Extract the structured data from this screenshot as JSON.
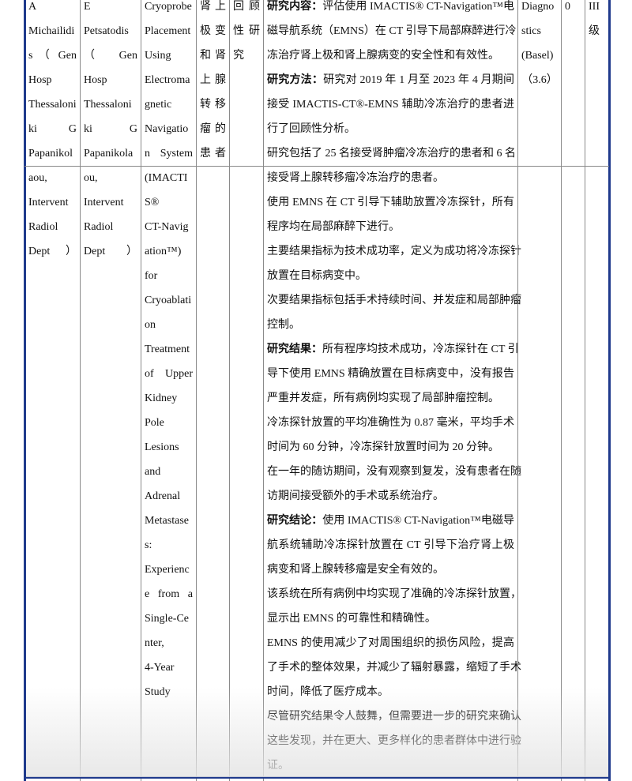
{
  "rows": [
    {
      "cells": [
        {
          "lines": [
            "A",
            "Michailidi",
            "s （ Gen",
            "Hosp",
            "Thessaloni",
            "ki G",
            "Papanikol"
          ]
        },
        {
          "lines": [
            "E",
            "Petsatodis",
            "（ Gen",
            "Hosp",
            "Thessaloni",
            "ki G",
            "Papanikola"
          ]
        },
        {
          "lines": [
            "Cryoprobe",
            "Placement",
            "Using",
            "Electroma",
            "gnetic",
            "Navigatio",
            "n System"
          ]
        },
        {
          "lines": [
            "肾上",
            "极变",
            "和肾",
            "上腺",
            "转移",
            "瘤的",
            "患者"
          ]
        },
        {
          "lines": [
            "回顾",
            "性研",
            "究"
          ]
        },
        {
          "paragraphs": [
            [
              {
                "b": "研究内容：",
                "t": "评估使用 IMACTIS® CT-Navigation™电"
              },
              {
                "t": "磁导航系统（EMNS）在 CT 引导下局部麻醉进行冷"
              },
              {
                "t": "冻治疗肾上极和肾上腺病变的安全性和有效性。"
              }
            ],
            [
              {
                "b": "研究方法：",
                "t": "研究对 2019 年 1 月至 2023 年 4 月期间"
              },
              {
                "t": "接受 IMACTIS-CT®-EMNS 辅助冷冻治疗的患者进"
              },
              {
                "t": "行了回顾性分析。"
              }
            ],
            [
              {
                "t": "研究包括了 25 名接受肾肿瘤冷冻治疗的患者和 6 名"
              }
            ]
          ]
        },
        {
          "lines": [
            "Diagno",
            "stics",
            "(Basel)",
            "（3.6）"
          ]
        },
        {
          "lines": [
            "0"
          ]
        },
        {
          "lines": [
            "III",
            "级"
          ]
        }
      ]
    },
    {
      "cells": [
        {
          "lines": [
            "aou,",
            "Intervent",
            "Radiol",
            "Dept）"
          ]
        },
        {
          "lines": [
            "ou,",
            "Intervent",
            "Radiol",
            "Dept）"
          ]
        },
        {
          "lines": [
            "(IMACTI",
            "S®",
            "CT-Navig",
            "ation™)",
            "for",
            "Cryoablati",
            "on",
            "Treatment",
            "of Upper",
            "Kidney",
            "Pole",
            "Lesions",
            "and",
            "Adrenal",
            "Metastase",
            "s:",
            "Experienc",
            "e from a",
            "Single-Ce",
            "nter,",
            "4-Year",
            "Study"
          ]
        },
        {
          "lines": []
        },
        {
          "lines": []
        },
        {
          "paragraphs": [
            [
              {
                "t": "接受肾上腺转移瘤冷冻治疗的患者。"
              }
            ],
            [
              {
                "t": "使用 EMNS 在 CT 引导下辅助放置冷冻探针，所有"
              },
              {
                "t": "程序均在局部麻醉下进行。"
              }
            ],
            [
              {
                "t": "主要结果指标为技术成功率，定义为成功将冷冻探针"
              },
              {
                "t": "放置在目标病变中。"
              }
            ],
            [
              {
                "t": "次要结果指标包括手术持续时间、并发症和局部肿瘤"
              },
              {
                "t": "控制。"
              }
            ],
            [
              {
                "b": "研究结果：",
                "t": "所有程序均技术成功，冷冻探针在 CT 引"
              },
              {
                "t": "导下使用 EMNS 精确放置在目标病变中，没有报告"
              },
              {
                "t": "严重并发症，所有病例均实现了局部肿瘤控制。"
              }
            ],
            [
              {
                "t": "冷冻探针放置的平均准确性为 0.87 毫米，平均手术"
              },
              {
                "t": "时间为 60 分钟，冷冻探针放置时间为 20 分钟。"
              }
            ],
            [
              {
                "t": "在一年的随访期间，没有观察到复发，没有患者在随"
              },
              {
                "t": "访期间接受额外的手术或系统治疗。"
              }
            ],
            [
              {
                "b": "研究结论：",
                "t": "使用 IMACTIS® CT-Navigation™电磁导"
              },
              {
                "t": "航系统辅助冷冻探针放置在 CT 引导下治疗肾上极"
              },
              {
                "t": "病变和肾上腺转移瘤是安全有效的。"
              }
            ],
            [
              {
                "t": "该系统在所有病例中均实现了准确的冷冻探针放置，"
              },
              {
                "t": "显示出 EMNS 的可靠性和精确性。"
              }
            ],
            [
              {
                "t": "EMNS 的使用减少了对周围组织的损伤风险，提高"
              },
              {
                "t": "了手术的整体效果，并减少了辐射暴露，缩短了手术"
              },
              {
                "t": "时间，降低了医疗成本。"
              }
            ],
            [
              {
                "t": "尽管研究结果令人鼓舞，但需要进一步的研究来确认"
              },
              {
                "t": "这些发现，并在更大、更多样化的患者群体中进行验"
              },
              {
                "t": "证。"
              }
            ]
          ]
        },
        {
          "lines": []
        },
        {
          "lines": []
        },
        {
          "lines": []
        }
      ]
    }
  ],
  "colors": {
    "border_accent": "#1f3a8c",
    "grid": "#8a8a8a"
  }
}
